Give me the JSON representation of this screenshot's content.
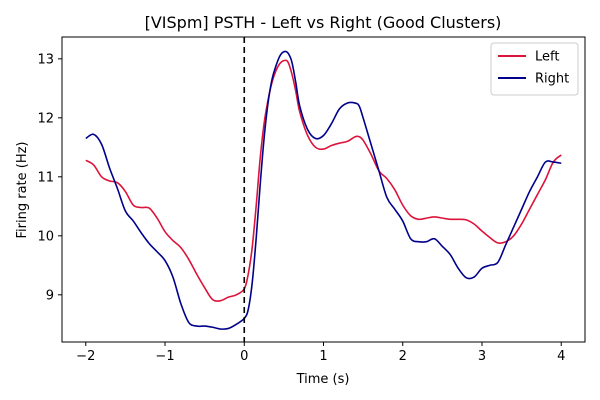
{
  "chart_data": {
    "type": "line",
    "title": "[VISpm] PSTH - Left vs Right (Good Clusters)",
    "xlabel": "Time (s)",
    "ylabel": "Firing rate (Hz)",
    "xlim": [
      -2.3,
      4.3
    ],
    "ylim": [
      8.2,
      13.37
    ],
    "xticks": [
      -2,
      -1,
      0,
      1,
      2,
      3,
      4
    ],
    "yticks": [
      9,
      10,
      11,
      12,
      13
    ],
    "grid": false,
    "legend_position": "top-right",
    "vline": {
      "x": 0,
      "style": "dashed",
      "color": "#000000"
    },
    "series": [
      {
        "name": "Left",
        "color": "#dc143c",
        "x": [
          -2.0,
          -1.9,
          -1.8,
          -1.7,
          -1.6,
          -1.5,
          -1.4,
          -1.3,
          -1.2,
          -1.1,
          -1.0,
          -0.9,
          -0.8,
          -0.7,
          -0.6,
          -0.5,
          -0.4,
          -0.3,
          -0.2,
          -0.1,
          0.0,
          0.05,
          0.1,
          0.15,
          0.2,
          0.25,
          0.3,
          0.35,
          0.4,
          0.45,
          0.5,
          0.55,
          0.6,
          0.65,
          0.7,
          0.8,
          0.9,
          1.0,
          1.1,
          1.2,
          1.3,
          1.4,
          1.45,
          1.5,
          1.6,
          1.7,
          1.8,
          1.9,
          2.0,
          2.1,
          2.2,
          2.3,
          2.4,
          2.5,
          2.6,
          2.7,
          2.8,
          2.9,
          3.0,
          3.1,
          3.2,
          3.3,
          3.4,
          3.5,
          3.6,
          3.7,
          3.8,
          3.9,
          4.0
        ],
        "values": [
          11.28,
          11.2,
          11.0,
          10.93,
          10.9,
          10.75,
          10.52,
          10.48,
          10.47,
          10.3,
          10.07,
          9.92,
          9.8,
          9.6,
          9.35,
          9.12,
          8.92,
          8.9,
          8.96,
          9.0,
          9.1,
          9.35,
          9.8,
          10.5,
          11.3,
          11.9,
          12.3,
          12.6,
          12.8,
          12.92,
          12.97,
          12.95,
          12.75,
          12.45,
          12.1,
          11.7,
          11.5,
          11.47,
          11.53,
          11.57,
          11.6,
          11.68,
          11.68,
          11.62,
          11.38,
          11.1,
          10.97,
          10.78,
          10.52,
          10.34,
          10.28,
          10.3,
          10.32,
          10.3,
          10.28,
          10.28,
          10.27,
          10.2,
          10.08,
          9.97,
          9.88,
          9.9,
          10.0,
          10.2,
          10.45,
          10.7,
          10.95,
          11.25,
          11.37
        ]
      },
      {
        "name": "Right",
        "color": "#00008b",
        "x": [
          -2.0,
          -1.9,
          -1.8,
          -1.7,
          -1.6,
          -1.5,
          -1.4,
          -1.3,
          -1.2,
          -1.1,
          -1.0,
          -0.9,
          -0.8,
          -0.7,
          -0.6,
          -0.5,
          -0.4,
          -0.3,
          -0.2,
          -0.1,
          0.0,
          0.05,
          0.1,
          0.15,
          0.2,
          0.25,
          0.3,
          0.35,
          0.4,
          0.45,
          0.5,
          0.55,
          0.6,
          0.65,
          0.7,
          0.8,
          0.9,
          1.0,
          1.1,
          1.2,
          1.3,
          1.4,
          1.45,
          1.5,
          1.6,
          1.7,
          1.8,
          1.9,
          2.0,
          2.1,
          2.2,
          2.3,
          2.4,
          2.5,
          2.6,
          2.7,
          2.8,
          2.9,
          3.0,
          3.1,
          3.2,
          3.3,
          3.4,
          3.5,
          3.6,
          3.7,
          3.8,
          3.9,
          4.0
        ],
        "values": [
          11.65,
          11.72,
          11.55,
          11.15,
          10.8,
          10.42,
          10.25,
          10.05,
          9.87,
          9.73,
          9.58,
          9.3,
          8.85,
          8.53,
          8.47,
          8.47,
          8.45,
          8.42,
          8.43,
          8.5,
          8.6,
          8.75,
          9.2,
          9.95,
          10.85,
          11.65,
          12.25,
          12.65,
          12.88,
          13.05,
          13.12,
          13.1,
          12.95,
          12.6,
          12.2,
          11.8,
          11.65,
          11.7,
          11.9,
          12.15,
          12.25,
          12.25,
          12.2,
          12.0,
          11.55,
          11.1,
          10.65,
          10.45,
          10.25,
          9.95,
          9.9,
          9.9,
          9.95,
          9.82,
          9.68,
          9.45,
          9.29,
          9.3,
          9.45,
          9.5,
          9.55,
          9.85,
          10.15,
          10.45,
          10.75,
          11.0,
          11.25,
          11.25,
          11.23
        ]
      }
    ]
  }
}
